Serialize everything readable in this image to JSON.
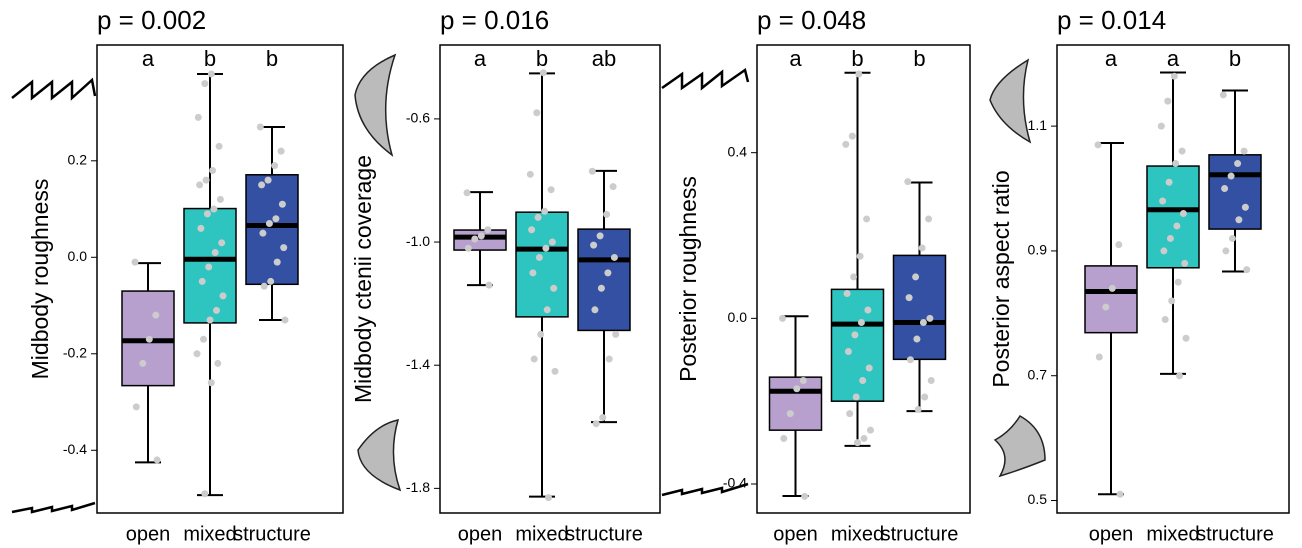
{
  "chart_data": [
    {
      "type": "box",
      "title": "p = 0.002",
      "y_label": "Midbody roughness",
      "categories": [
        "open",
        "mixed",
        "structure"
      ],
      "letters": [
        "a",
        "b",
        "b"
      ],
      "colors": [
        "#b79fce",
        "#2ec4c0",
        "#3350a3"
      ],
      "point_color": "#cccccc",
      "ylim": [
        -0.53,
        0.44
      ],
      "yticks": [
        -0.4,
        -0.2,
        {
          "value": 0,
          "label": "0.0"
        },
        0.2
      ],
      "boxes": [
        {
          "min": -0.425,
          "q1": -0.266,
          "median": -0.173,
          "q3": -0.07,
          "max": -0.012,
          "points": [
            -0.01,
            -0.12,
            -0.17,
            -0.22,
            -0.31,
            -0.42
          ]
        },
        {
          "min": -0.493,
          "q1": -0.136,
          "median": -0.004,
          "q3": 0.101,
          "max": 0.38,
          "points": [
            0.38,
            0.36,
            0.29,
            0.23,
            0.18,
            0.16,
            0.15,
            0.12,
            0.1,
            0.09,
            0.06,
            0.03,
            0.01,
            -0.02,
            -0.05,
            -0.08,
            -0.11,
            -0.13,
            -0.17,
            -0.2,
            -0.22,
            -0.26,
            -0.49
          ]
        },
        {
          "min": -0.13,
          "q1": -0.056,
          "median": 0.066,
          "q3": 0.171,
          "max": 0.27,
          "points": [
            0.27,
            0.22,
            0.19,
            0.16,
            0.15,
            0.11,
            0.08,
            0.07,
            0.05,
            0.02,
            -0.01,
            -0.05,
            -0.06,
            -0.13
          ]
        }
      ]
    },
    {
      "type": "box",
      "title": "p = 0.016",
      "y_label": "Midbody ctenii coverage",
      "categories": [
        "open",
        "mixed",
        "structure"
      ],
      "letters": [
        "a",
        "b",
        "ab"
      ],
      "colors": [
        "#b79fce",
        "#2ec4c0",
        "#3350a3"
      ],
      "point_color": "#cccccc",
      "ylim": [
        -1.88,
        -0.36
      ],
      "yticks": [
        -1.8,
        -1.4,
        {
          "value": -1,
          "label": "-1.0"
        },
        -0.6
      ],
      "boxes": [
        {
          "min": -1.14,
          "q1": -1.026,
          "median": -0.984,
          "q3": -0.961,
          "max": -0.838,
          "points": [
            -0.84,
            -0.96,
            -0.98,
            -0.99,
            -1.02,
            -1.14
          ]
        },
        {
          "min": -1.827,
          "q1": -1.243,
          "median": -1.023,
          "q3": -0.903,
          "max": -0.452,
          "points": [
            -0.45,
            -0.58,
            -0.78,
            -0.83,
            -0.9,
            -0.92,
            -0.96,
            -1.0,
            -1.02,
            -1.05,
            -1.1,
            -1.15,
            -1.22,
            -1.3,
            -1.38,
            -1.42,
            -1.83
          ]
        },
        {
          "min": -1.585,
          "q1": -1.287,
          "median": -1.058,
          "q3": -0.958,
          "max": -0.769,
          "points": [
            -0.77,
            -0.82,
            -0.91,
            -0.98,
            -1.01,
            -1.05,
            -1.1,
            -1.15,
            -1.22,
            -1.3,
            -1.38,
            -1.57,
            -1.59
          ]
        }
      ]
    },
    {
      "type": "box",
      "title": "p = 0.048",
      "y_label": "Posterior roughness",
      "categories": [
        "open",
        "mixed",
        "structure"
      ],
      "letters": [
        "a",
        "b",
        "b"
      ],
      "colors": [
        "#b79fce",
        "#2ec4c0",
        "#3350a3"
      ],
      "point_color": "#cccccc",
      "ylim": [
        -0.47,
        0.66
      ],
      "yticks": [
        -0.4,
        {
          "value": 0,
          "label": "0.0"
        },
        0.4
      ],
      "boxes": [
        {
          "min": -0.429,
          "q1": -0.27,
          "median": -0.176,
          "q3": -0.142,
          "max": 0.005,
          "points": [
            0.0,
            -0.15,
            -0.17,
            -0.23,
            -0.29,
            -0.43
          ]
        },
        {
          "min": -0.308,
          "q1": -0.2,
          "median": -0.014,
          "q3": 0.07,
          "max": 0.593,
          "points": [
            0.59,
            0.44,
            0.42,
            0.24,
            0.15,
            0.1,
            0.06,
            0.02,
            -0.01,
            -0.04,
            -0.08,
            -0.12,
            -0.15,
            -0.19,
            -0.23,
            -0.27,
            -0.29,
            -0.3
          ]
        },
        {
          "min": -0.224,
          "q1": -0.099,
          "median": -0.01,
          "q3": 0.152,
          "max": 0.328,
          "points": [
            0.33,
            0.24,
            0.17,
            0.1,
            0.05,
            0.0,
            -0.01,
            -0.05,
            -0.1,
            -0.15,
            -0.19,
            -0.22
          ]
        }
      ]
    },
    {
      "type": "box",
      "title": "p = 0.014",
      "y_label": "Posterior aspect ratio",
      "categories": [
        "open",
        "mixed",
        "structure"
      ],
      "letters": [
        "a",
        "a",
        "b"
      ],
      "colors": [
        "#b79fce",
        "#2ec4c0",
        "#3350a3"
      ],
      "point_color": "#cccccc",
      "ylim": [
        0.48,
        1.23
      ],
      "yticks": [
        0.5,
        0.7,
        0.9,
        1.1
      ],
      "boxes": [
        {
          "min": 0.51,
          "q1": 0.769,
          "median": 0.835,
          "q3": 0.876,
          "max": 1.073,
          "points": [
            1.07,
            0.91,
            0.84,
            0.81,
            0.73,
            0.51
          ]
        },
        {
          "min": 0.703,
          "q1": 0.873,
          "median": 0.966,
          "q3": 1.036,
          "max": 1.186,
          "points": [
            1.18,
            1.14,
            1.1,
            1.06,
            1.04,
            1.01,
            0.98,
            0.96,
            0.94,
            0.92,
            0.9,
            0.88,
            0.85,
            0.82,
            0.79,
            0.76,
            0.7
          ]
        },
        {
          "min": 0.867,
          "q1": 0.935,
          "median": 1.022,
          "q3": 1.054,
          "max": 1.157,
          "points": [
            1.15,
            1.06,
            1.04,
            1.02,
            1.0,
            0.97,
            0.95,
            0.92,
            0.9,
            0.87
          ]
        }
      ]
    }
  ]
}
